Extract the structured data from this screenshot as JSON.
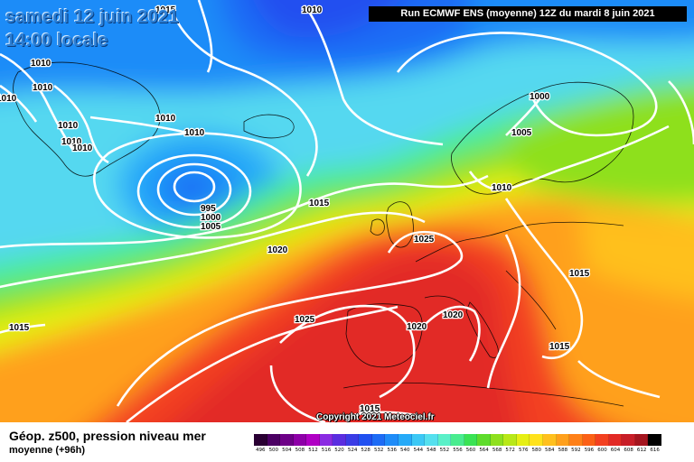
{
  "header": {
    "date_line": "samedi 12 juin 2021",
    "time_line": "14:00 locale",
    "run_info": "Run ECMWF ENS (moyenne) 12Z du mardi 8 juin 2021"
  },
  "copyright": "Copyright 2021 Meteociel.fr",
  "footer": {
    "title": "Géop. z500, pression niveau mer",
    "subtitle": "moyenne   (+96h)"
  },
  "legend": {
    "labels": [
      "496",
      "500",
      "504",
      "508",
      "512",
      "516",
      "520",
      "524",
      "528",
      "532",
      "536",
      "540",
      "544",
      "548",
      "552",
      "556",
      "560",
      "564",
      "568",
      "572",
      "576",
      "580",
      "584",
      "588",
      "592",
      "596",
      "600",
      "604",
      "608",
      "612",
      "616"
    ],
    "colors": [
      "#2a0033",
      "#4b0063",
      "#6d0087",
      "#8e00a8",
      "#b000c4",
      "#8a2be2",
      "#5a2de0",
      "#3a3ce6",
      "#2050f0",
      "#1e6cf5",
      "#1f8cf8",
      "#26aaf8",
      "#3cc8f5",
      "#55e0ee",
      "#5af0c8",
      "#49ec8f",
      "#3ae354",
      "#5edc2c",
      "#8ee01e",
      "#b8e818",
      "#e6ef14",
      "#ffe21c",
      "#ffc01e",
      "#ffa01c",
      "#ff8018",
      "#fb6016",
      "#f34020",
      "#e22a26",
      "#c81e28",
      "#a4151f",
      "#000000"
    ]
  },
  "isobars": [
    {
      "value": "1015",
      "name": "isobar-label-1015-top"
    },
    {
      "value": "1010",
      "name": "isobar-label-1010-top"
    },
    {
      "value": "1010",
      "name": "isobar-label-1010-west-a"
    },
    {
      "value": "1010",
      "name": "isobar-label-1010-west-b"
    },
    {
      "value": "1010",
      "name": "isobar-label-1010-west-c"
    },
    {
      "value": "1010",
      "name": "isobar-label-1010-greenland-a"
    },
    {
      "value": "1010",
      "name": "isobar-label-1010-greenland-b"
    },
    {
      "value": "1010",
      "name": "isobar-label-1010-iceland"
    },
    {
      "value": "1010",
      "name": "isobar-label-1010-greenland-c"
    },
    {
      "value": "1010",
      "name": "isobar-label-1010-greenland-d"
    },
    {
      "value": "1000",
      "name": "isobar-label-1000-scandinavia"
    },
    {
      "value": "1005",
      "name": "isobar-label-1005-scandinavia"
    },
    {
      "value": "995",
      "name": "isobar-label-995-low"
    },
    {
      "value": "1000",
      "name": "isobar-label-1000-low"
    },
    {
      "value": "1005",
      "name": "isobar-label-1005-low"
    },
    {
      "value": "1015",
      "name": "isobar-label-1015-atlantic"
    },
    {
      "value": "1010",
      "name": "isobar-label-1010-north-sea"
    },
    {
      "value": "1025",
      "name": "isobar-label-1025-channel"
    },
    {
      "value": "1020",
      "name": "isobar-label-1020-atlantic"
    },
    {
      "value": "1015",
      "name": "isobar-label-1015-central-europe"
    },
    {
      "value": "1025",
      "name": "isobar-label-1025-azores"
    },
    {
      "value": "1020",
      "name": "isobar-label-1020-iberia"
    },
    {
      "value": "1020",
      "name": "isobar-label-1020-mediterranean"
    },
    {
      "value": "1015",
      "name": "isobar-label-1015-west-atlantic"
    },
    {
      "value": "1015",
      "name": "isobar-label-1015-balkans"
    },
    {
      "value": "1015",
      "name": "isobar-label-1015-south"
    }
  ],
  "low_center": "995"
}
